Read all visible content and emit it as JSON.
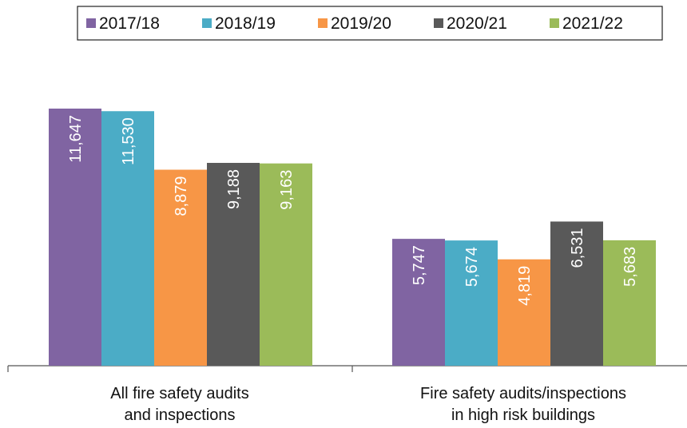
{
  "chart_data": {
    "type": "bar",
    "categories": [
      "All fire safety audits\nand inspections",
      "Fire safety audits/inspections\nin high risk buildings"
    ],
    "series": [
      {
        "name": "2017/18",
        "color": "#8064a2",
        "values": [
          11647,
          5747
        ],
        "value_labels": [
          "11,647",
          "5,747"
        ]
      },
      {
        "name": "2018/19",
        "color": "#4bacc6",
        "values": [
          11530,
          5674
        ],
        "value_labels": [
          "11,530",
          "5,674"
        ]
      },
      {
        "name": "2019/20",
        "color": "#f79646",
        "values": [
          8879,
          4819
        ],
        "value_labels": [
          "8,879",
          "4,819"
        ]
      },
      {
        "name": "2020/21",
        "color": "#595959",
        "values": [
          9188,
          6531
        ],
        "value_labels": [
          "9,188",
          "6,531"
        ]
      },
      {
        "name": "2021/22",
        "color": "#9bbb59",
        "values": [
          9163,
          5683
        ],
        "value_labels": [
          "9,163",
          "5,683"
        ]
      }
    ],
    "legend": "top"
  }
}
